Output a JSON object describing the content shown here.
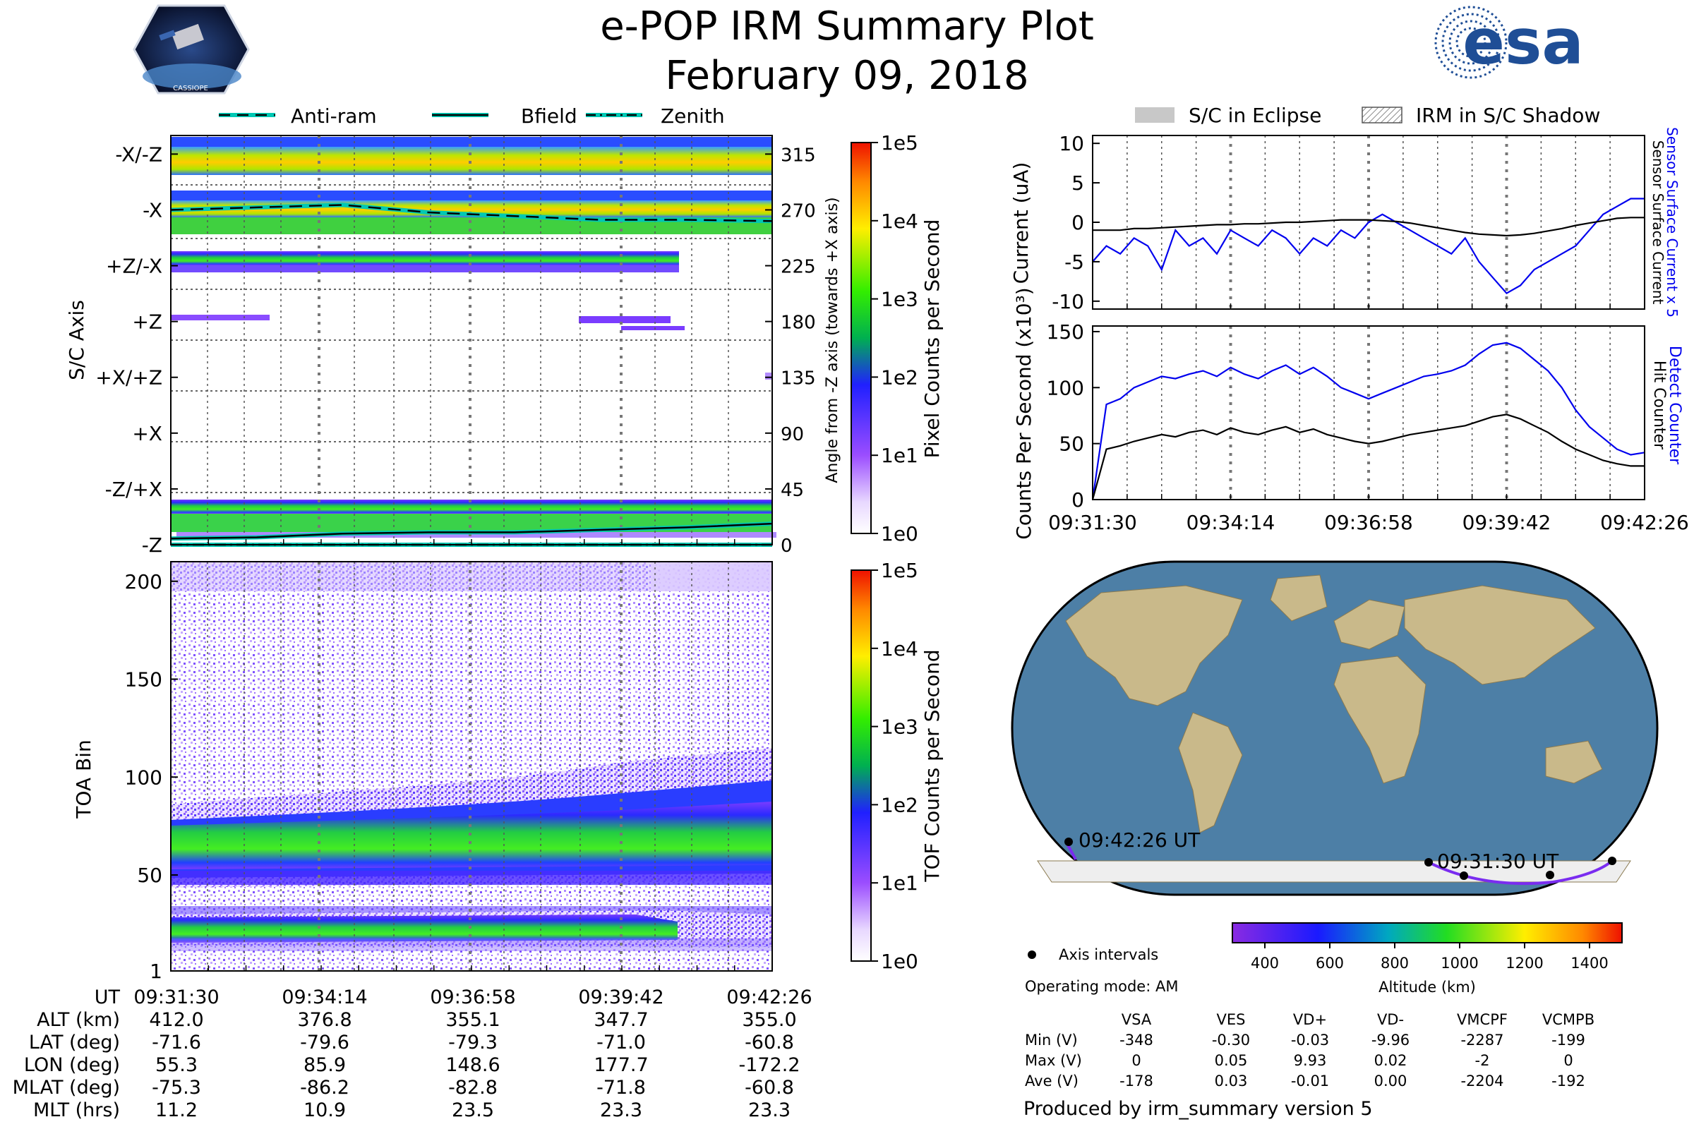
{
  "header": {
    "title": "e-POP IRM Summary Plot",
    "date": "February 09, 2018",
    "left_logo_text": "CASSIOPE",
    "right_logo_text": "esa"
  },
  "legend_top_left": [
    "Anti-ram",
    "Bfield",
    "Zenith"
  ],
  "legend_top_right": [
    "S/C in Eclipse",
    "IRM in S/C Shadow"
  ],
  "colors": {
    "accent_cyan": "#00c8b4",
    "blue_trace": "#0000ee",
    "black_trace": "#000000",
    "orbit_purple": "#7a2cf0",
    "ocean": "#4d7fa6",
    "land": "#c9b98a"
  },
  "chart_data": [
    {
      "id": "sc_axis",
      "type": "heatmap",
      "ylabel": "S/C Axis",
      "right_label": "Angle from -Z axis (towards +X axis)",
      "categories_y": [
        "-X/-Z",
        "-X",
        "+Z/-X",
        "+Z",
        "+X/+Z",
        "+X",
        "-Z/+X",
        "-Z"
      ],
      "angle_ticks": [
        315,
        270,
        225,
        180,
        135,
        90,
        45,
        0
      ],
      "ylim": [
        0,
        330
      ],
      "series": [
        {
          "name": "Anti-ram",
          "style": "dashed",
          "values": [
            270,
            272,
            274,
            268,
            265,
            262,
            262,
            261
          ]
        },
        {
          "name": "Bfield",
          "style": "solid",
          "values": [
            5,
            6,
            9,
            10,
            10,
            12,
            14,
            17
          ]
        },
        {
          "name": "Zenith",
          "style": "dashdot",
          "values": [
            0,
            0,
            0,
            0,
            0,
            0,
            0,
            0
          ]
        }
      ],
      "colorbar": {
        "label": "Pixel Counts per Second",
        "ticks": [
          "1e0",
          "1e1",
          "1e2",
          "1e3",
          "1e4",
          "1e5"
        ]
      }
    },
    {
      "id": "toa",
      "type": "heatmap",
      "ylabel": "TOA Bin",
      "yticks": [
        1,
        50,
        100,
        150,
        200
      ],
      "ylim": [
        1,
        210
      ],
      "colorbar": {
        "label": "TOF Counts per Second",
        "ticks": [
          "1e0",
          "1e1",
          "1e2",
          "1e3",
          "1e4",
          "1e5"
        ]
      }
    },
    {
      "id": "current",
      "type": "line",
      "ylabel": "Current (uA)",
      "right_labels": [
        "Sensor Surface Current x 5",
        "Sensor Surface Current"
      ],
      "yticks": [
        10,
        5,
        0,
        -5,
        -10
      ],
      "ylim": [
        -11,
        11
      ],
      "x": [
        0,
        1,
        2,
        3,
        4,
        5,
        6,
        7,
        8,
        9,
        10,
        11,
        12,
        13,
        14,
        15,
        16,
        17,
        18,
        19,
        20,
        21,
        22,
        23,
        24,
        25,
        26,
        27,
        28,
        29,
        30,
        31,
        32,
        33,
        34,
        35,
        36,
        37,
        38,
        39,
        40
      ],
      "series": [
        {
          "name": "Sensor Surface Current x 5",
          "color": "blue",
          "values": [
            -5,
            -3,
            -4,
            -2,
            -3,
            -6,
            -1,
            -3,
            -2,
            -4,
            -1,
            -2,
            -3,
            -1,
            -2,
            -4,
            -2,
            -3,
            -1,
            -2,
            0,
            1,
            0,
            -1,
            -2,
            -3,
            -4,
            -2,
            -5,
            -7,
            -9,
            -8,
            -6,
            -5,
            -4,
            -3,
            -1,
            1,
            2,
            3,
            3
          ]
        },
        {
          "name": "Sensor Surface Current",
          "color": "black",
          "values": [
            -1,
            -1,
            -1,
            -0.8,
            -0.8,
            -0.7,
            -0.6,
            -0.5,
            -0.4,
            -0.3,
            -0.3,
            -0.2,
            -0.2,
            -0.1,
            0,
            0,
            0.1,
            0.2,
            0.3,
            0.3,
            0.3,
            0.2,
            0.1,
            -0.1,
            -0.4,
            -0.7,
            -1,
            -1.3,
            -1.5,
            -1.6,
            -1.7,
            -1.6,
            -1.4,
            -1.1,
            -0.8,
            -0.4,
            -0.1,
            0.2,
            0.5,
            0.6,
            0.6
          ]
        }
      ]
    },
    {
      "id": "counts",
      "type": "line",
      "ylabel": "Counts Per Second (x10³)",
      "right_labels": [
        "Detect Counter",
        "Hit Counter"
      ],
      "yticks": [
        150,
        100,
        50,
        0
      ],
      "ylim": [
        0,
        155
      ],
      "xticks": [
        "09:31:30",
        "09:34:14",
        "09:36:58",
        "09:39:42",
        "09:42:26"
      ],
      "x": [
        0,
        1,
        2,
        3,
        4,
        5,
        6,
        7,
        8,
        9,
        10,
        11,
        12,
        13,
        14,
        15,
        16,
        17,
        18,
        19,
        20,
        21,
        22,
        23,
        24,
        25,
        26,
        27,
        28,
        29,
        30,
        31,
        32,
        33,
        34,
        35,
        36,
        37,
        38,
        39,
        40
      ],
      "series": [
        {
          "name": "Detect Counter",
          "color": "blue",
          "values": [
            0,
            85,
            90,
            100,
            105,
            110,
            108,
            112,
            115,
            110,
            118,
            112,
            108,
            115,
            120,
            112,
            118,
            110,
            100,
            95,
            90,
            95,
            100,
            105,
            110,
            112,
            115,
            120,
            130,
            138,
            140,
            135,
            125,
            115,
            100,
            80,
            65,
            55,
            45,
            40,
            42
          ]
        },
        {
          "name": "Hit Counter",
          "color": "black",
          "values": [
            0,
            45,
            48,
            52,
            55,
            58,
            56,
            60,
            62,
            58,
            64,
            60,
            58,
            62,
            65,
            60,
            63,
            58,
            55,
            52,
            50,
            52,
            55,
            58,
            60,
            62,
            64,
            66,
            70,
            74,
            76,
            72,
            66,
            60,
            52,
            45,
            40,
            35,
            32,
            30,
            30
          ]
        }
      ]
    },
    {
      "id": "orbit_map",
      "type": "scatter",
      "labels": [
        "09:42:26 UT",
        "09:31:30 UT"
      ],
      "colorbar": {
        "label": "Altitude (km)",
        "ticks": [
          400,
          600,
          800,
          1000,
          1200,
          1400
        ],
        "range": [
          300,
          1500
        ]
      }
    }
  ],
  "stats_table": {
    "legend": "Axis intervals",
    "mode": "Operating mode: AM",
    "headers": [
      "",
      "VSA",
      "VES",
      "VD+",
      "VD-",
      "VMCPF",
      "VCMPB"
    ],
    "rows": [
      [
        "Min (V)",
        "-348",
        "-0.30",
        "-0.03",
        "-9.96",
        "-2287",
        "-199"
      ],
      [
        "Max (V)",
        "0",
        "0.05",
        "9.93",
        "0.02",
        "-2",
        "0"
      ],
      [
        "Ave (V)",
        "-178",
        "0.03",
        "-0.01",
        "0.00",
        "-2204",
        "-192"
      ]
    ]
  },
  "footer": {
    "produced": "Produced by irm_summary version 5"
  },
  "ephemeris": {
    "labels": [
      "UT",
      "ALT (km)",
      "LAT (deg)",
      "LON (deg)",
      "MLAT (deg)",
      "MLT (hrs)"
    ],
    "columns": [
      [
        "09:31:30",
        "412.0",
        "-71.6",
        "55.3",
        "-75.3",
        "11.2"
      ],
      [
        "09:34:14",
        "376.8",
        "-79.6",
        "85.9",
        "-86.2",
        "10.9"
      ],
      [
        "09:36:58",
        "355.1",
        "-79.3",
        "148.6",
        "-82.8",
        "23.5"
      ],
      [
        "09:39:42",
        "347.7",
        "-71.0",
        "177.7",
        "-71.8",
        "23.3"
      ],
      [
        "09:42:26",
        "355.0",
        "-60.8",
        "-172.2",
        "-60.8",
        "23.3"
      ]
    ]
  }
}
